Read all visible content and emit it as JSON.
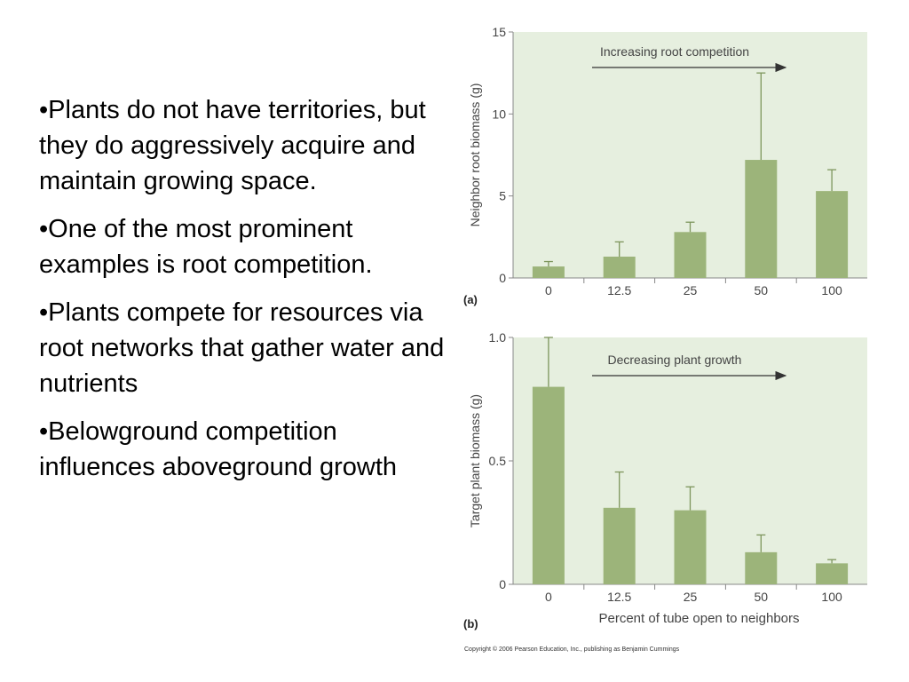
{
  "bullets": [
    "•Plants do not have territories, but they do aggressively acquire and maintain growing space.",
    "•One of the most prominent examples is root competition.",
    "•Plants compete for resources via root networks that gather water and nutrients",
    "•Belowground competition influences aboveground growth"
  ],
  "colors": {
    "plot_bg": "#e6efdf",
    "bar": "#9cb47a",
    "axis": "#888888"
  },
  "chart_data": [
    {
      "type": "bar",
      "panel_label": "(a)",
      "annotation": "Increasing root competition",
      "categories": [
        "0",
        "12.5",
        "25",
        "50",
        "100"
      ],
      "values": [
        0.7,
        1.3,
        2.8,
        7.2,
        5.3
      ],
      "error_upper": [
        1.0,
        2.2,
        3.4,
        12.5,
        6.6
      ],
      "ylabel": "Neighbor root biomass (g)",
      "xlabel": "",
      "ylim": [
        0,
        15
      ],
      "yticks": [
        "0",
        "5",
        "10",
        "15"
      ],
      "ytick_values": [
        0,
        5,
        10,
        15
      ]
    },
    {
      "type": "bar",
      "panel_label": "(b)",
      "annotation": "Decreasing plant growth",
      "categories": [
        "0",
        "12.5",
        "25",
        "50",
        "100"
      ],
      "values": [
        0.8,
        0.31,
        0.3,
        0.13,
        0.085
      ],
      "error_upper": [
        1.0,
        0.455,
        0.395,
        0.2,
        0.1
      ],
      "ylabel": "Target plant biomass (g)",
      "xlabel": "Percent of tube open to neighbors",
      "ylim": [
        0,
        1.0
      ],
      "yticks": [
        "0",
        "0.5",
        "1.0"
      ],
      "ytick_values": [
        0,
        0.5,
        1.0
      ]
    }
  ],
  "copyright": "Copyright © 2006 Pearson Education, Inc., publishing as Benjamin Cummings"
}
